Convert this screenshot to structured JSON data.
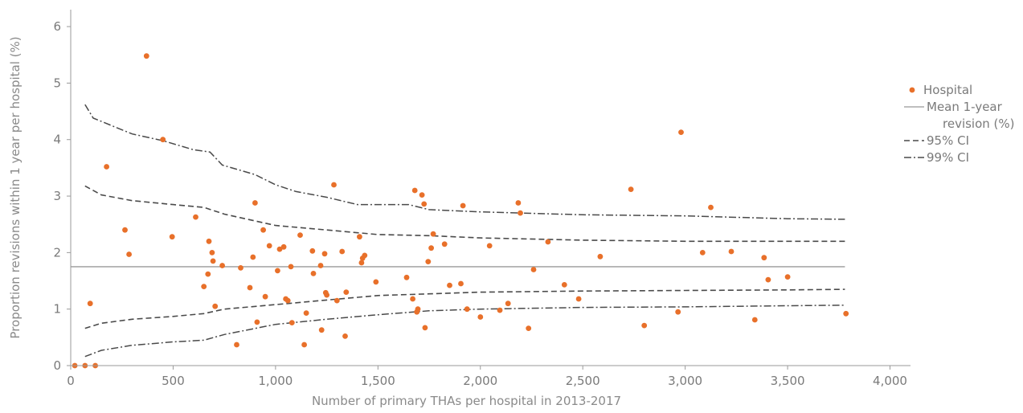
{
  "chart_data": {
    "type": "scatter",
    "title": "",
    "xlabel": "Number of primary THAs per hospital in 2013-2017",
    "ylabel": "Proportion revisions within 1 year per hospital (%)",
    "xlim": [
      0,
      4100
    ],
    "ylim": [
      0,
      6.3
    ],
    "x_ticks": [
      0,
      500,
      1000,
      1500,
      2000,
      2500,
      3000,
      3500,
      4000
    ],
    "x_tick_labels": [
      "0",
      "500",
      "1,000",
      "1,500",
      "2,000",
      "2,500",
      "3,000",
      "3,500",
      "4,000"
    ],
    "y_ticks": [
      0,
      1,
      2,
      3,
      4,
      5,
      6
    ],
    "y_tick_labels": [
      "0",
      "1",
      "2",
      "3",
      "4",
      "5",
      "6"
    ],
    "grid": false,
    "legend_position": "right",
    "colors": {
      "points": "#e8702a",
      "mean": "#a8a8a8",
      "ci": "#4a4a4a"
    },
    "series": [
      {
        "name": "Hospital",
        "kind": "points",
        "points": [
          [
            20,
            0
          ],
          [
            70,
            0
          ],
          [
            120,
            0
          ],
          [
            95,
            1.1
          ],
          [
            175,
            3.52
          ],
          [
            265,
            2.4
          ],
          [
            285,
            1.97
          ],
          [
            370,
            5.48
          ],
          [
            450,
            4.0
          ],
          [
            495,
            2.28
          ],
          [
            610,
            2.63
          ],
          [
            650,
            1.4
          ],
          [
            675,
            2.2
          ],
          [
            670,
            1.62
          ],
          [
            690,
            2.0
          ],
          [
            695,
            1.85
          ],
          [
            705,
            1.05
          ],
          [
            740,
            1.77
          ],
          [
            810,
            0.37
          ],
          [
            830,
            1.73
          ],
          [
            875,
            1.38
          ],
          [
            890,
            1.92
          ],
          [
            900,
            2.88
          ],
          [
            910,
            0.77
          ],
          [
            940,
            2.4
          ],
          [
            950,
            1.22
          ],
          [
            970,
            2.12
          ],
          [
            1010,
            1.68
          ],
          [
            1020,
            2.06
          ],
          [
            1040,
            2.1
          ],
          [
            1050,
            1.18
          ],
          [
            1060,
            1.15
          ],
          [
            1075,
            1.75
          ],
          [
            1080,
            0.76
          ],
          [
            1120,
            2.31
          ],
          [
            1140,
            0.37
          ],
          [
            1150,
            0.93
          ],
          [
            1180,
            2.03
          ],
          [
            1185,
            1.63
          ],
          [
            1220,
            1.77
          ],
          [
            1225,
            0.63
          ],
          [
            1240,
            1.98
          ],
          [
            1245,
            1.29
          ],
          [
            1250,
            1.25
          ],
          [
            1285,
            3.2
          ],
          [
            1300,
            1.15
          ],
          [
            1325,
            2.02
          ],
          [
            1340,
            0.52
          ],
          [
            1345,
            1.3
          ],
          [
            1410,
            2.28
          ],
          [
            1420,
            1.82
          ],
          [
            1425,
            1.9
          ],
          [
            1435,
            1.95
          ],
          [
            1490,
            1.48
          ],
          [
            1640,
            1.56
          ],
          [
            1670,
            1.18
          ],
          [
            1680,
            3.1
          ],
          [
            1690,
            0.95
          ],
          [
            1695,
            1.0
          ],
          [
            1715,
            3.02
          ],
          [
            1725,
            2.86
          ],
          [
            1730,
            0.67
          ],
          [
            1745,
            1.84
          ],
          [
            1760,
            2.08
          ],
          [
            1770,
            2.33
          ],
          [
            1825,
            2.15
          ],
          [
            1850,
            1.42
          ],
          [
            1905,
            1.45
          ],
          [
            1915,
            2.83
          ],
          [
            1935,
            1.0
          ],
          [
            2000,
            0.86
          ],
          [
            2045,
            2.12
          ],
          [
            2095,
            0.98
          ],
          [
            2135,
            1.1
          ],
          [
            2185,
            2.88
          ],
          [
            2195,
            2.7
          ],
          [
            2235,
            0.66
          ],
          [
            2260,
            1.7
          ],
          [
            2330,
            2.19
          ],
          [
            2410,
            1.43
          ],
          [
            2480,
            1.18
          ],
          [
            2585,
            1.93
          ],
          [
            2735,
            3.12
          ],
          [
            2800,
            0.71
          ],
          [
            2965,
            0.95
          ],
          [
            2980,
            4.13
          ],
          [
            3085,
            2.0
          ],
          [
            3125,
            2.8
          ],
          [
            3225,
            2.02
          ],
          [
            3340,
            0.81
          ],
          [
            3385,
            1.91
          ],
          [
            3405,
            1.52
          ],
          [
            3500,
            1.57
          ],
          [
            3785,
            0.92
          ]
        ]
      },
      {
        "name": "Mean 1-year revision (%)",
        "kind": "mean",
        "y": 1.75,
        "x_range": [
          0,
          3780
        ]
      },
      {
        "name": "95% CI",
        "kind": "ci95",
        "upper": [
          [
            70,
            3.18
          ],
          [
            150,
            3.02
          ],
          [
            300,
            2.92
          ],
          [
            500,
            2.85
          ],
          [
            650,
            2.8
          ],
          [
            750,
            2.68
          ],
          [
            1000,
            2.48
          ],
          [
            1250,
            2.4
          ],
          [
            1500,
            2.32
          ],
          [
            1750,
            2.3
          ],
          [
            2000,
            2.26
          ],
          [
            2500,
            2.22
          ],
          [
            3000,
            2.2
          ],
          [
            3500,
            2.2
          ],
          [
            3780,
            2.2
          ]
        ],
        "lower": [
          [
            70,
            0.66
          ],
          [
            150,
            0.75
          ],
          [
            300,
            0.82
          ],
          [
            500,
            0.87
          ],
          [
            650,
            0.92
          ],
          [
            750,
            1.0
          ],
          [
            1000,
            1.08
          ],
          [
            1250,
            1.16
          ],
          [
            1500,
            1.24
          ],
          [
            1750,
            1.27
          ],
          [
            2000,
            1.3
          ],
          [
            2500,
            1.32
          ],
          [
            3000,
            1.33
          ],
          [
            3500,
            1.34
          ],
          [
            3780,
            1.35
          ]
        ]
      },
      {
        "name": "99% CI",
        "kind": "ci99",
        "upper": [
          [
            70,
            4.62
          ],
          [
            110,
            4.38
          ],
          [
            300,
            4.1
          ],
          [
            450,
            3.98
          ],
          [
            600,
            3.82
          ],
          [
            680,
            3.78
          ],
          [
            740,
            3.55
          ],
          [
            900,
            3.38
          ],
          [
            1000,
            3.2
          ],
          [
            1100,
            3.08
          ],
          [
            1250,
            2.98
          ],
          [
            1400,
            2.85
          ],
          [
            1650,
            2.85
          ],
          [
            1750,
            2.76
          ],
          [
            2000,
            2.72
          ],
          [
            2500,
            2.67
          ],
          [
            3000,
            2.65
          ],
          [
            3500,
            2.6
          ],
          [
            3780,
            2.59
          ]
        ],
        "lower": [
          [
            70,
            0.16
          ],
          [
            150,
            0.27
          ],
          [
            300,
            0.36
          ],
          [
            500,
            0.42
          ],
          [
            650,
            0.45
          ],
          [
            750,
            0.55
          ],
          [
            1000,
            0.73
          ],
          [
            1250,
            0.82
          ],
          [
            1500,
            0.9
          ],
          [
            1750,
            0.97
          ],
          [
            2000,
            1.0
          ],
          [
            2500,
            1.03
          ],
          [
            3000,
            1.04
          ],
          [
            3500,
            1.06
          ],
          [
            3780,
            1.07
          ]
        ]
      }
    ],
    "legend": [
      {
        "label": "Hospital",
        "kind": "points"
      },
      {
        "label_lines": [
          "Mean 1-year",
          "revision (%)"
        ],
        "kind": "mean"
      },
      {
        "label": "95% CI",
        "kind": "ci95"
      },
      {
        "label": "99% CI",
        "kind": "ci99"
      }
    ]
  }
}
